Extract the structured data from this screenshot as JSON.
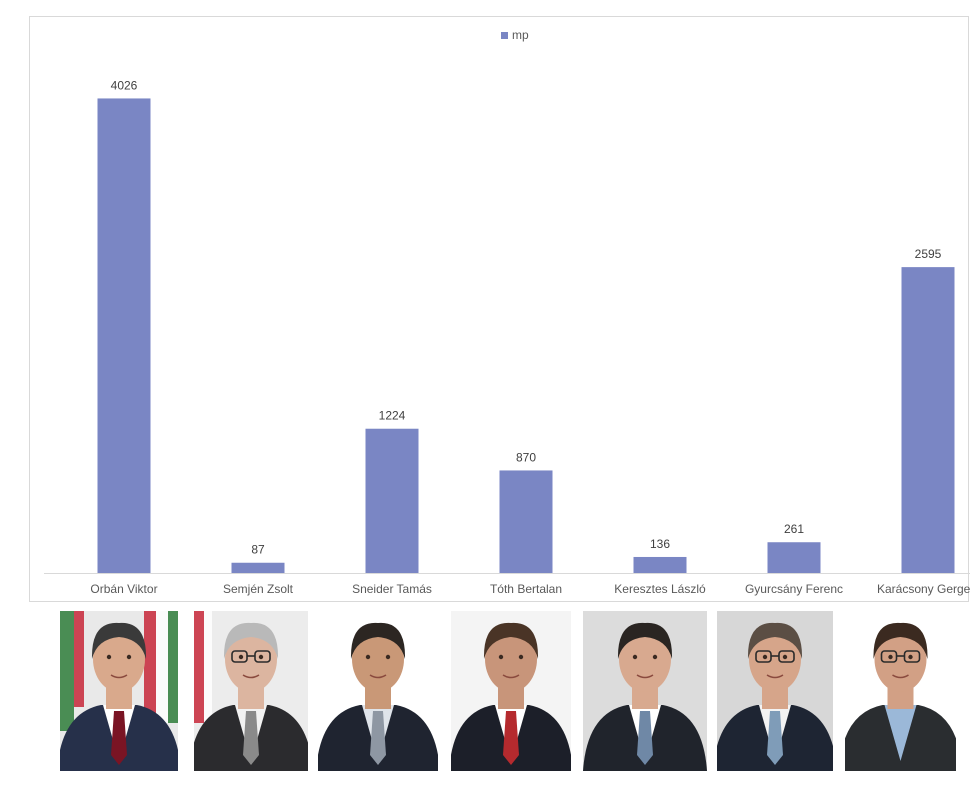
{
  "chart_data": {
    "type": "bar",
    "categories": [
      "Orbán Viktor",
      "Semjén Zsolt",
      "Sneider Tamás",
      "Tóth Bertalan",
      "Keresztes László",
      "Gyurcsány Ferenc",
      "Karácsony Gergely"
    ],
    "series": [
      {
        "name": "mp",
        "values": [
          4026,
          87,
          1224,
          870,
          136,
          261,
          2595
        ]
      }
    ],
    "data_labels": [
      "4026",
      "87",
      "1224",
      "870",
      "136",
      "261",
      "2595"
    ],
    "ylim": [
      0,
      4700
    ],
    "grid": false,
    "legend_position": "top-center",
    "bar_color": "#7a86c4"
  },
  "portraits": [
    {
      "person": "Orbán Viktor",
      "bg": "#e9e9e9",
      "flag": "hungary",
      "suit": "#26304a",
      "shirt": "#ffffff",
      "tie": "#7a1424",
      "hair": "#3a3a3a",
      "skin": "#d9a98c"
    },
    {
      "person": "Semjén Zsolt",
      "bg": "#ececec",
      "flag": "hungary-left",
      "suit": "#2b2b2e",
      "shirt": "#f2f2f2",
      "tie": "#8a8a8a",
      "hair": "#b9b9b9",
      "skin": "#dcb5a0",
      "glasses": true
    },
    {
      "person": "Sneider Tamás",
      "bg": "#ffffff",
      "suit": "#1f2430",
      "shirt": "#dfe4ea",
      "tie": "#8e97a3",
      "hair": "#2c2622",
      "skin": "#c99877"
    },
    {
      "person": "Tóth Bertalan",
      "bg": "#f4f4f4",
      "suit": "#1c1f29",
      "shirt": "#ffffff",
      "tie": "#b52a2e",
      "hair": "#4a3426",
      "skin": "#c8957a"
    },
    {
      "person": "Keresztes László",
      "bg": "#dcdcdc",
      "suit": "#20242c",
      "shirt": "#ffffff",
      "tie": "#6f88a6",
      "hair": "#2a2522",
      "skin": "#d8a98f"
    },
    {
      "person": "Gyurcsány Ferenc",
      "bg": "#d7d7d7",
      "suit": "#1e2533",
      "shirt": "#f3f3f3",
      "tie": "#7f9cb8",
      "hair": "#5b4e44",
      "skin": "#d6a58a",
      "glasses": true
    },
    {
      "person": "Karácsony Gergely",
      "bg": "#ffffff",
      "suit": "#2a2d30",
      "shirt": "#9bb8d8",
      "tie": "",
      "hair": "#3b2a20",
      "skin": "#d2a085",
      "glasses": true
    }
  ]
}
